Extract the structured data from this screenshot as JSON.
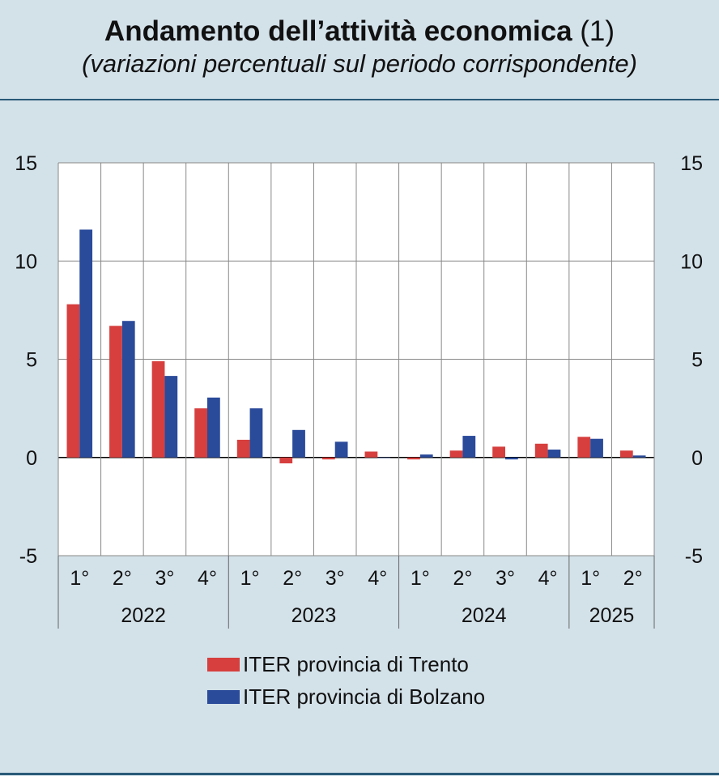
{
  "chart_data": {
    "type": "bar",
    "title": "Andamento dell’attività economica",
    "title_note": "(1)",
    "subtitle": "(variazioni percentuali sul periodo corrispondente)",
    "ylim": [
      -5,
      15
    ],
    "yticks": [
      "15",
      "10",
      "5",
      "0",
      "-5"
    ],
    "ytick_values": [
      15,
      10,
      5,
      0,
      -5
    ],
    "categories": [
      "1°",
      "2°",
      "3°",
      "4°",
      "1°",
      "2°",
      "3°",
      "4°",
      "1°",
      "2°",
      "3°",
      "4°",
      "1°",
      "2°"
    ],
    "years": [
      {
        "label": "2022",
        "count": 4
      },
      {
        "label": "2023",
        "count": 4
      },
      {
        "label": "2024",
        "count": 4
      },
      {
        "label": "2025",
        "count": 2
      }
    ],
    "series": [
      {
        "name": "ITER provincia di Trento",
        "color": "#d63f3e",
        "values": [
          7.8,
          6.7,
          4.9,
          2.5,
          0.9,
          -0.3,
          -0.1,
          0.3,
          -0.1,
          0.35,
          0.55,
          0.7,
          1.05,
          0.35
        ]
      },
      {
        "name": "ITER provincia di Bolzano",
        "color": "#2a4a9a",
        "values": [
          11.6,
          6.95,
          4.15,
          3.05,
          2.5,
          1.4,
          0.8,
          0.0,
          0.15,
          1.1,
          -0.1,
          0.4,
          0.95,
          0.1
        ]
      }
    ],
    "grid": true,
    "legend": "bottom"
  }
}
